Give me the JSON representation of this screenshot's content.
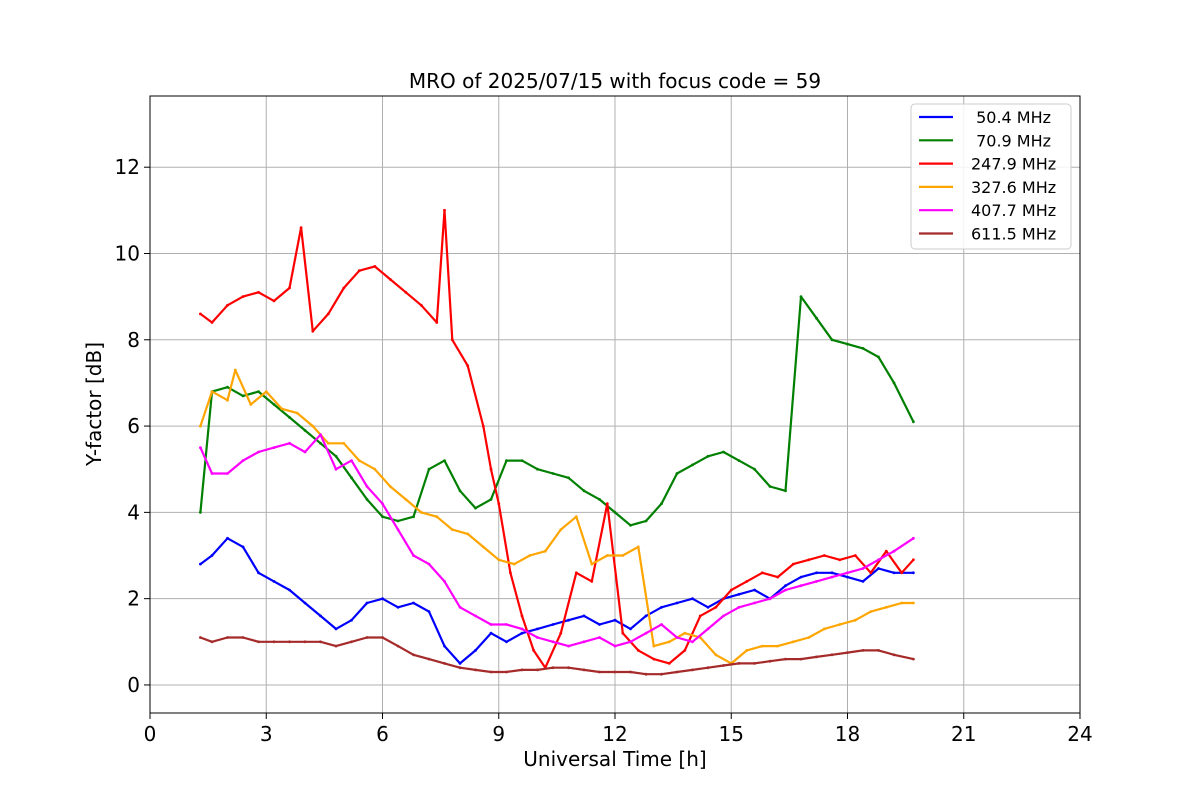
{
  "chart_data": {
    "type": "line",
    "title": "MRO of 2025/07/15 with focus code = 59",
    "xlabel": "Universal Time [h]",
    "ylabel": "Y-factor [dB]",
    "xlim": [
      0,
      24
    ],
    "ylim": [
      -0.65,
      13.65
    ],
    "xticks": [
      0,
      3,
      6,
      9,
      12,
      15,
      18,
      21,
      24
    ],
    "yticks": [
      0,
      2,
      4,
      6,
      8,
      10,
      12
    ],
    "grid": true,
    "legend_position": "top-right",
    "series": [
      {
        "name": " 50.4 MHz",
        "color": "#0000ff",
        "x": [
          1.3,
          1.6,
          2.0,
          2.4,
          2.8,
          3.2,
          3.6,
          4.0,
          4.4,
          4.8,
          5.2,
          5.6,
          6.0,
          6.4,
          6.8,
          7.2,
          7.6,
          8.0,
          8.4,
          8.8,
          9.2,
          9.6,
          10.0,
          10.4,
          10.8,
          11.2,
          11.6,
          12.0,
          12.4,
          12.8,
          13.2,
          13.6,
          14.0,
          14.4,
          14.8,
          15.2,
          15.6,
          16.0,
          16.4,
          16.8,
          17.2,
          17.6,
          18.0,
          18.4,
          18.8,
          19.2,
          19.7
        ],
        "y": [
          2.8,
          3.0,
          3.4,
          3.2,
          2.6,
          2.4,
          2.2,
          1.9,
          1.6,
          1.3,
          1.5,
          1.9,
          2.0,
          1.8,
          1.9,
          1.7,
          0.9,
          0.5,
          0.8,
          1.2,
          1.0,
          1.2,
          1.3,
          1.4,
          1.5,
          1.6,
          1.4,
          1.5,
          1.3,
          1.6,
          1.8,
          1.9,
          2.0,
          1.8,
          2.0,
          2.1,
          2.2,
          2.0,
          2.3,
          2.5,
          2.6,
          2.6,
          2.5,
          2.4,
          2.7,
          2.6,
          2.6
        ]
      },
      {
        "name": " 70.9 MHz",
        "color": "#008000",
        "x": [
          1.3,
          1.6,
          2.0,
          2.4,
          2.8,
          3.2,
          3.6,
          4.0,
          4.4,
          4.8,
          5.2,
          5.6,
          6.0,
          6.4,
          6.8,
          7.2,
          7.6,
          8.0,
          8.4,
          8.8,
          9.2,
          9.6,
          10.0,
          10.4,
          10.8,
          11.2,
          11.6,
          12.0,
          12.4,
          12.8,
          13.2,
          13.6,
          14.0,
          14.4,
          14.8,
          15.2,
          15.6,
          16.0,
          16.4,
          16.8,
          17.2,
          17.6,
          18.0,
          18.4,
          18.8,
          19.2,
          19.7
        ],
        "y": [
          4.0,
          6.8,
          6.9,
          6.7,
          6.8,
          6.5,
          6.2,
          5.9,
          5.6,
          5.3,
          4.8,
          4.3,
          3.9,
          3.8,
          3.9,
          5.0,
          5.2,
          4.5,
          4.1,
          4.3,
          5.2,
          5.2,
          5.0,
          4.9,
          4.8,
          4.5,
          4.3,
          4.0,
          3.7,
          3.8,
          4.2,
          4.9,
          5.1,
          5.3,
          5.4,
          5.2,
          5.0,
          4.6,
          4.5,
          9.0,
          8.5,
          8.0,
          7.9,
          7.8,
          7.6,
          7.0,
          6.1
        ]
      },
      {
        "name": "247.9 MHz",
        "color": "#ff0000",
        "x": [
          1.3,
          1.6,
          2.0,
          2.4,
          2.8,
          3.2,
          3.6,
          3.9,
          4.2,
          4.6,
          5.0,
          5.4,
          5.8,
          6.2,
          6.6,
          7.0,
          7.4,
          7.6,
          7.8,
          8.2,
          8.6,
          8.8,
          9.0,
          9.3,
          9.6,
          9.9,
          10.2,
          10.6,
          11.0,
          11.4,
          11.8,
          12.2,
          12.6,
          13.0,
          13.4,
          13.8,
          14.2,
          14.6,
          15.0,
          15.4,
          15.8,
          16.2,
          16.6,
          17.0,
          17.4,
          17.8,
          18.2,
          18.6,
          19.0,
          19.4,
          19.7
        ],
        "y": [
          8.6,
          8.4,
          8.8,
          9.0,
          9.1,
          8.9,
          9.2,
          10.6,
          8.2,
          8.6,
          9.2,
          9.6,
          9.7,
          9.4,
          9.1,
          8.8,
          8.4,
          11.0,
          8.0,
          7.4,
          6.0,
          5.0,
          4.2,
          2.6,
          1.6,
          0.8,
          0.4,
          1.2,
          2.6,
          2.4,
          4.2,
          1.2,
          0.8,
          0.6,
          0.5,
          0.8,
          1.6,
          1.8,
          2.2,
          2.4,
          2.6,
          2.5,
          2.8,
          2.9,
          3.0,
          2.9,
          3.0,
          2.6,
          3.1,
          2.6,
          2.9
        ]
      },
      {
        "name": "327.6 MHz",
        "color": "#ffa500",
        "x": [
          1.3,
          1.6,
          2.0,
          2.2,
          2.6,
          3.0,
          3.4,
          3.8,
          4.2,
          4.6,
          5.0,
          5.4,
          5.8,
          6.2,
          6.6,
          7.0,
          7.4,
          7.8,
          8.2,
          8.6,
          9.0,
          9.4,
          9.8,
          10.2,
          10.6,
          11.0,
          11.4,
          11.8,
          12.2,
          12.6,
          13.0,
          13.4,
          13.8,
          14.2,
          14.6,
          15.0,
          15.4,
          15.8,
          16.2,
          16.6,
          17.0,
          17.4,
          17.8,
          18.2,
          18.6,
          19.0,
          19.4,
          19.7
        ],
        "y": [
          6.0,
          6.8,
          6.6,
          7.3,
          6.5,
          6.8,
          6.4,
          6.3,
          6.0,
          5.6,
          5.6,
          5.2,
          5.0,
          4.6,
          4.3,
          4.0,
          3.9,
          3.6,
          3.5,
          3.2,
          2.9,
          2.8,
          3.0,
          3.1,
          3.6,
          3.9,
          2.8,
          3.0,
          3.0,
          3.2,
          0.9,
          1.0,
          1.2,
          1.1,
          0.7,
          0.5,
          0.8,
          0.9,
          0.9,
          1.0,
          1.1,
          1.3,
          1.4,
          1.5,
          1.7,
          1.8,
          1.9,
          1.9
        ]
      },
      {
        "name": "407.7 MHz",
        "color": "#ff00ff",
        "x": [
          1.3,
          1.6,
          2.0,
          2.4,
          2.8,
          3.2,
          3.6,
          4.0,
          4.4,
          4.8,
          5.2,
          5.6,
          6.0,
          6.4,
          6.8,
          7.2,
          7.6,
          8.0,
          8.4,
          8.8,
          9.2,
          9.6,
          10.0,
          10.4,
          10.8,
          11.2,
          11.6,
          12.0,
          12.4,
          12.8,
          13.2,
          13.6,
          14.0,
          14.4,
          14.8,
          15.2,
          15.6,
          16.0,
          16.4,
          16.8,
          17.2,
          17.6,
          18.0,
          18.4,
          18.8,
          19.2,
          19.7
        ],
        "y": [
          5.5,
          4.9,
          4.9,
          5.2,
          5.4,
          5.5,
          5.6,
          5.4,
          5.8,
          5.0,
          5.2,
          4.6,
          4.2,
          3.6,
          3.0,
          2.8,
          2.4,
          1.8,
          1.6,
          1.4,
          1.4,
          1.3,
          1.1,
          1.0,
          0.9,
          1.0,
          1.1,
          0.9,
          1.0,
          1.2,
          1.4,
          1.1,
          1.0,
          1.3,
          1.6,
          1.8,
          1.9,
          2.0,
          2.2,
          2.3,
          2.4,
          2.5,
          2.6,
          2.7,
          2.9,
          3.1,
          3.4
        ]
      },
      {
        "name": "611.5 MHz",
        "color": "#a52a2a",
        "x": [
          1.3,
          1.6,
          2.0,
          2.4,
          2.8,
          3.2,
          3.6,
          4.0,
          4.4,
          4.8,
          5.2,
          5.6,
          6.0,
          6.4,
          6.8,
          7.2,
          7.6,
          8.0,
          8.4,
          8.8,
          9.2,
          9.6,
          10.0,
          10.4,
          10.8,
          11.2,
          11.6,
          12.0,
          12.4,
          12.8,
          13.2,
          13.6,
          14.0,
          14.4,
          14.8,
          15.2,
          15.6,
          16.0,
          16.4,
          16.8,
          17.2,
          17.6,
          18.0,
          18.4,
          18.8,
          19.2,
          19.7
        ],
        "y": [
          1.1,
          1.0,
          1.1,
          1.1,
          1.0,
          1.0,
          1.0,
          1.0,
          1.0,
          0.9,
          1.0,
          1.1,
          1.1,
          0.9,
          0.7,
          0.6,
          0.5,
          0.4,
          0.35,
          0.3,
          0.3,
          0.35,
          0.35,
          0.4,
          0.4,
          0.35,
          0.3,
          0.3,
          0.3,
          0.25,
          0.25,
          0.3,
          0.35,
          0.4,
          0.45,
          0.5,
          0.5,
          0.55,
          0.6,
          0.6,
          0.65,
          0.7,
          0.75,
          0.8,
          0.8,
          0.7,
          0.6
        ]
      }
    ]
  }
}
